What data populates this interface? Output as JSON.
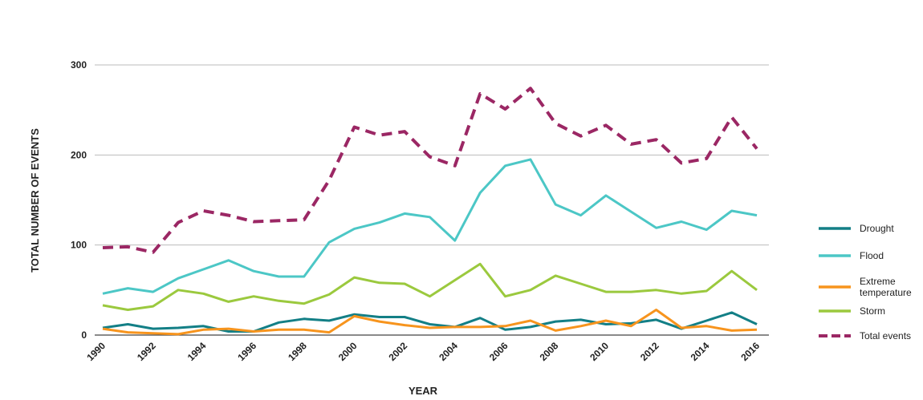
{
  "chart_data": {
    "type": "line",
    "title": "",
    "xlabel": "YEAR",
    "ylabel": "TOTAL NUMBER OF EVENTS",
    "ylim": [
      0,
      300
    ],
    "yticks": [
      "0",
      "100",
      "200",
      "300"
    ],
    "grid": true,
    "legend_position": "right",
    "x": [
      1990,
      1991,
      1992,
      1993,
      1994,
      1995,
      1996,
      1997,
      1998,
      1999,
      2000,
      2001,
      2002,
      2003,
      2004,
      2005,
      2006,
      2007,
      2008,
      2009,
      2010,
      2011,
      2012,
      2013,
      2014,
      2015,
      2016
    ],
    "xtick_labels": [
      "1990",
      "1992",
      "1994",
      "1996",
      "1998",
      "2000",
      "2002",
      "2004",
      "2006",
      "2008",
      "2010",
      "2012",
      "2014",
      "2016"
    ],
    "series": [
      {
        "name": "Drought",
        "color": "#137f86",
        "dash": false,
        "values": [
          8,
          12,
          7,
          8,
          10,
          4,
          4,
          14,
          18,
          16,
          23,
          20,
          20,
          12,
          9,
          19,
          6,
          9,
          15,
          17,
          12,
          13,
          17,
          7,
          16,
          25,
          12
        ]
      },
      {
        "name": "Flood",
        "color": "#4cc7c6",
        "dash": false,
        "values": [
          46,
          52,
          48,
          63,
          73,
          83,
          71,
          65,
          65,
          103,
          118,
          125,
          135,
          131,
          105,
          158,
          188,
          195,
          145,
          133,
          155,
          137,
          119,
          126,
          117,
          138,
          133
        ]
      },
      {
        "name": "Extreme\ntemperature",
        "color": "#f7941d",
        "dash": false,
        "values": [
          7,
          3,
          2,
          1,
          6,
          7,
          4,
          6,
          6,
          3,
          21,
          15,
          11,
          8,
          9,
          9,
          10,
          16,
          5,
          10,
          16,
          10,
          28,
          8,
          10,
          5,
          6
        ]
      },
      {
        "name": "Storm",
        "color": "#9bc93e",
        "dash": false,
        "values": [
          33,
          28,
          32,
          50,
          46,
          37,
          43,
          38,
          35,
          45,
          64,
          58,
          57,
          43,
          61,
          79,
          43,
          50,
          66,
          57,
          48,
          48,
          50,
          46,
          49,
          71,
          50
        ]
      },
      {
        "name": "Total events",
        "color": "#9b2764",
        "dash": true,
        "values": [
          97,
          98,
          92,
          125,
          138,
          133,
          126,
          127,
          128,
          172,
          231,
          222,
          226,
          198,
          188,
          268,
          251,
          274,
          235,
          221,
          233,
          212,
          217,
          191,
          196,
          242,
          207
        ]
      }
    ]
  }
}
